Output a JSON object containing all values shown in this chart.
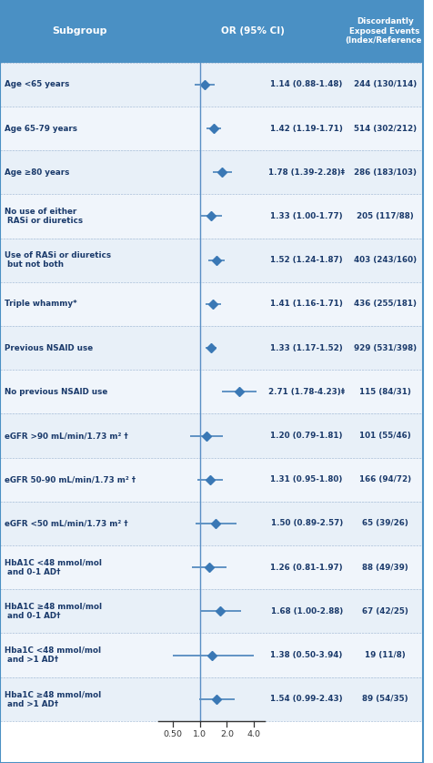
{
  "header_bg": "#4A90C4",
  "row_bg_light": "#E8F0F8",
  "row_bg_lighter": "#F0F5FB",
  "header_text_color": "#FFFFFF",
  "body_text_color": "#1A3A6B",
  "axis_line_color": "#4A7FB5",
  "diamond_color": "#3A78B5",
  "line_color": "#3A78B5",
  "vline_color": "#5A8FC5",
  "subgroups": [
    "Age <65 years",
    "Age 65-79 years",
    "Age ≥80 years",
    "No use of either\n RASi or diuretics",
    "Use of RASi or diuretics\n but not both",
    "Triple whammy*",
    "Previous NSAID use",
    "No previous NSAID use",
    "eGFR >90 mL/min/1.73 m² †",
    "eGFR 50-90 mL/min/1.73 m² †",
    "eGFR <50 mL/min/1.73 m² †",
    "HbA1C <48 mmol/mol\n and 0-1 AD†",
    "HbA1C ≥48 mmol/mol\n and 0-1 AD†",
    "Hba1C <48 mmol/mol\n and >1 AD†",
    "Hba1C ≥48 mmol/mol\n and >1 AD†"
  ],
  "or_values": [
    1.14,
    1.42,
    1.78,
    1.33,
    1.52,
    1.41,
    1.33,
    2.71,
    1.2,
    1.31,
    1.5,
    1.26,
    1.68,
    1.38,
    1.54
  ],
  "ci_lower": [
    0.88,
    1.19,
    1.39,
    1.0,
    1.24,
    1.16,
    1.17,
    1.78,
    0.79,
    0.95,
    0.89,
    0.81,
    1.0,
    0.5,
    0.99
  ],
  "ci_upper": [
    1.48,
    1.71,
    2.28,
    1.77,
    1.87,
    1.71,
    1.52,
    4.23,
    1.81,
    1.8,
    2.57,
    1.97,
    2.88,
    3.94,
    2.43
  ],
  "or_labels": [
    "1.14 (0.88-1.48)",
    "1.42 (1.19-1.71)",
    "1.78 (1.39-2.28)‡",
    "1.33 (1.00-1.77)",
    "1.52 (1.24-1.87)",
    "1.41 (1.16-1.71)",
    "1.33 (1.17-1.52)",
    "2.71 (1.78-4.23)‡",
    "1.20 (0.79-1.81)",
    "1.31 (0.95-1.80)",
    "1.50 (0.89-2.57)",
    "1.26 (0.81-1.97)",
    "1.68 (1.00-2.88)",
    "1.38 (0.50-3.94)",
    "1.54 (0.99-2.43)"
  ],
  "event_labels": [
    "244 (130/114)",
    "514 (302/212)",
    "286 (183/103)",
    "205 (117/88)",
    "403 (243/160)",
    "436 (255/181)",
    "929 (531/398)",
    "115 (84/31)",
    "101 (55/46)",
    "166 (94/72)",
    "65 (39/26)",
    "88 (49/39)",
    "67 (42/25)",
    "19 (11/8)",
    "89 (54/35)"
  ],
  "xmin": 0.35,
  "xmax": 5.2,
  "xticks": [
    0.5,
    1.0,
    2.0,
    4.0
  ],
  "xticklabels": [
    "0.50",
    "1.0",
    "2.0",
    "4.0"
  ],
  "col1_label": "Subgroup",
  "col2_label": "OR (95% CI)",
  "col3_label": "Discordantly\nExposed Events\n(Index/Reference)"
}
